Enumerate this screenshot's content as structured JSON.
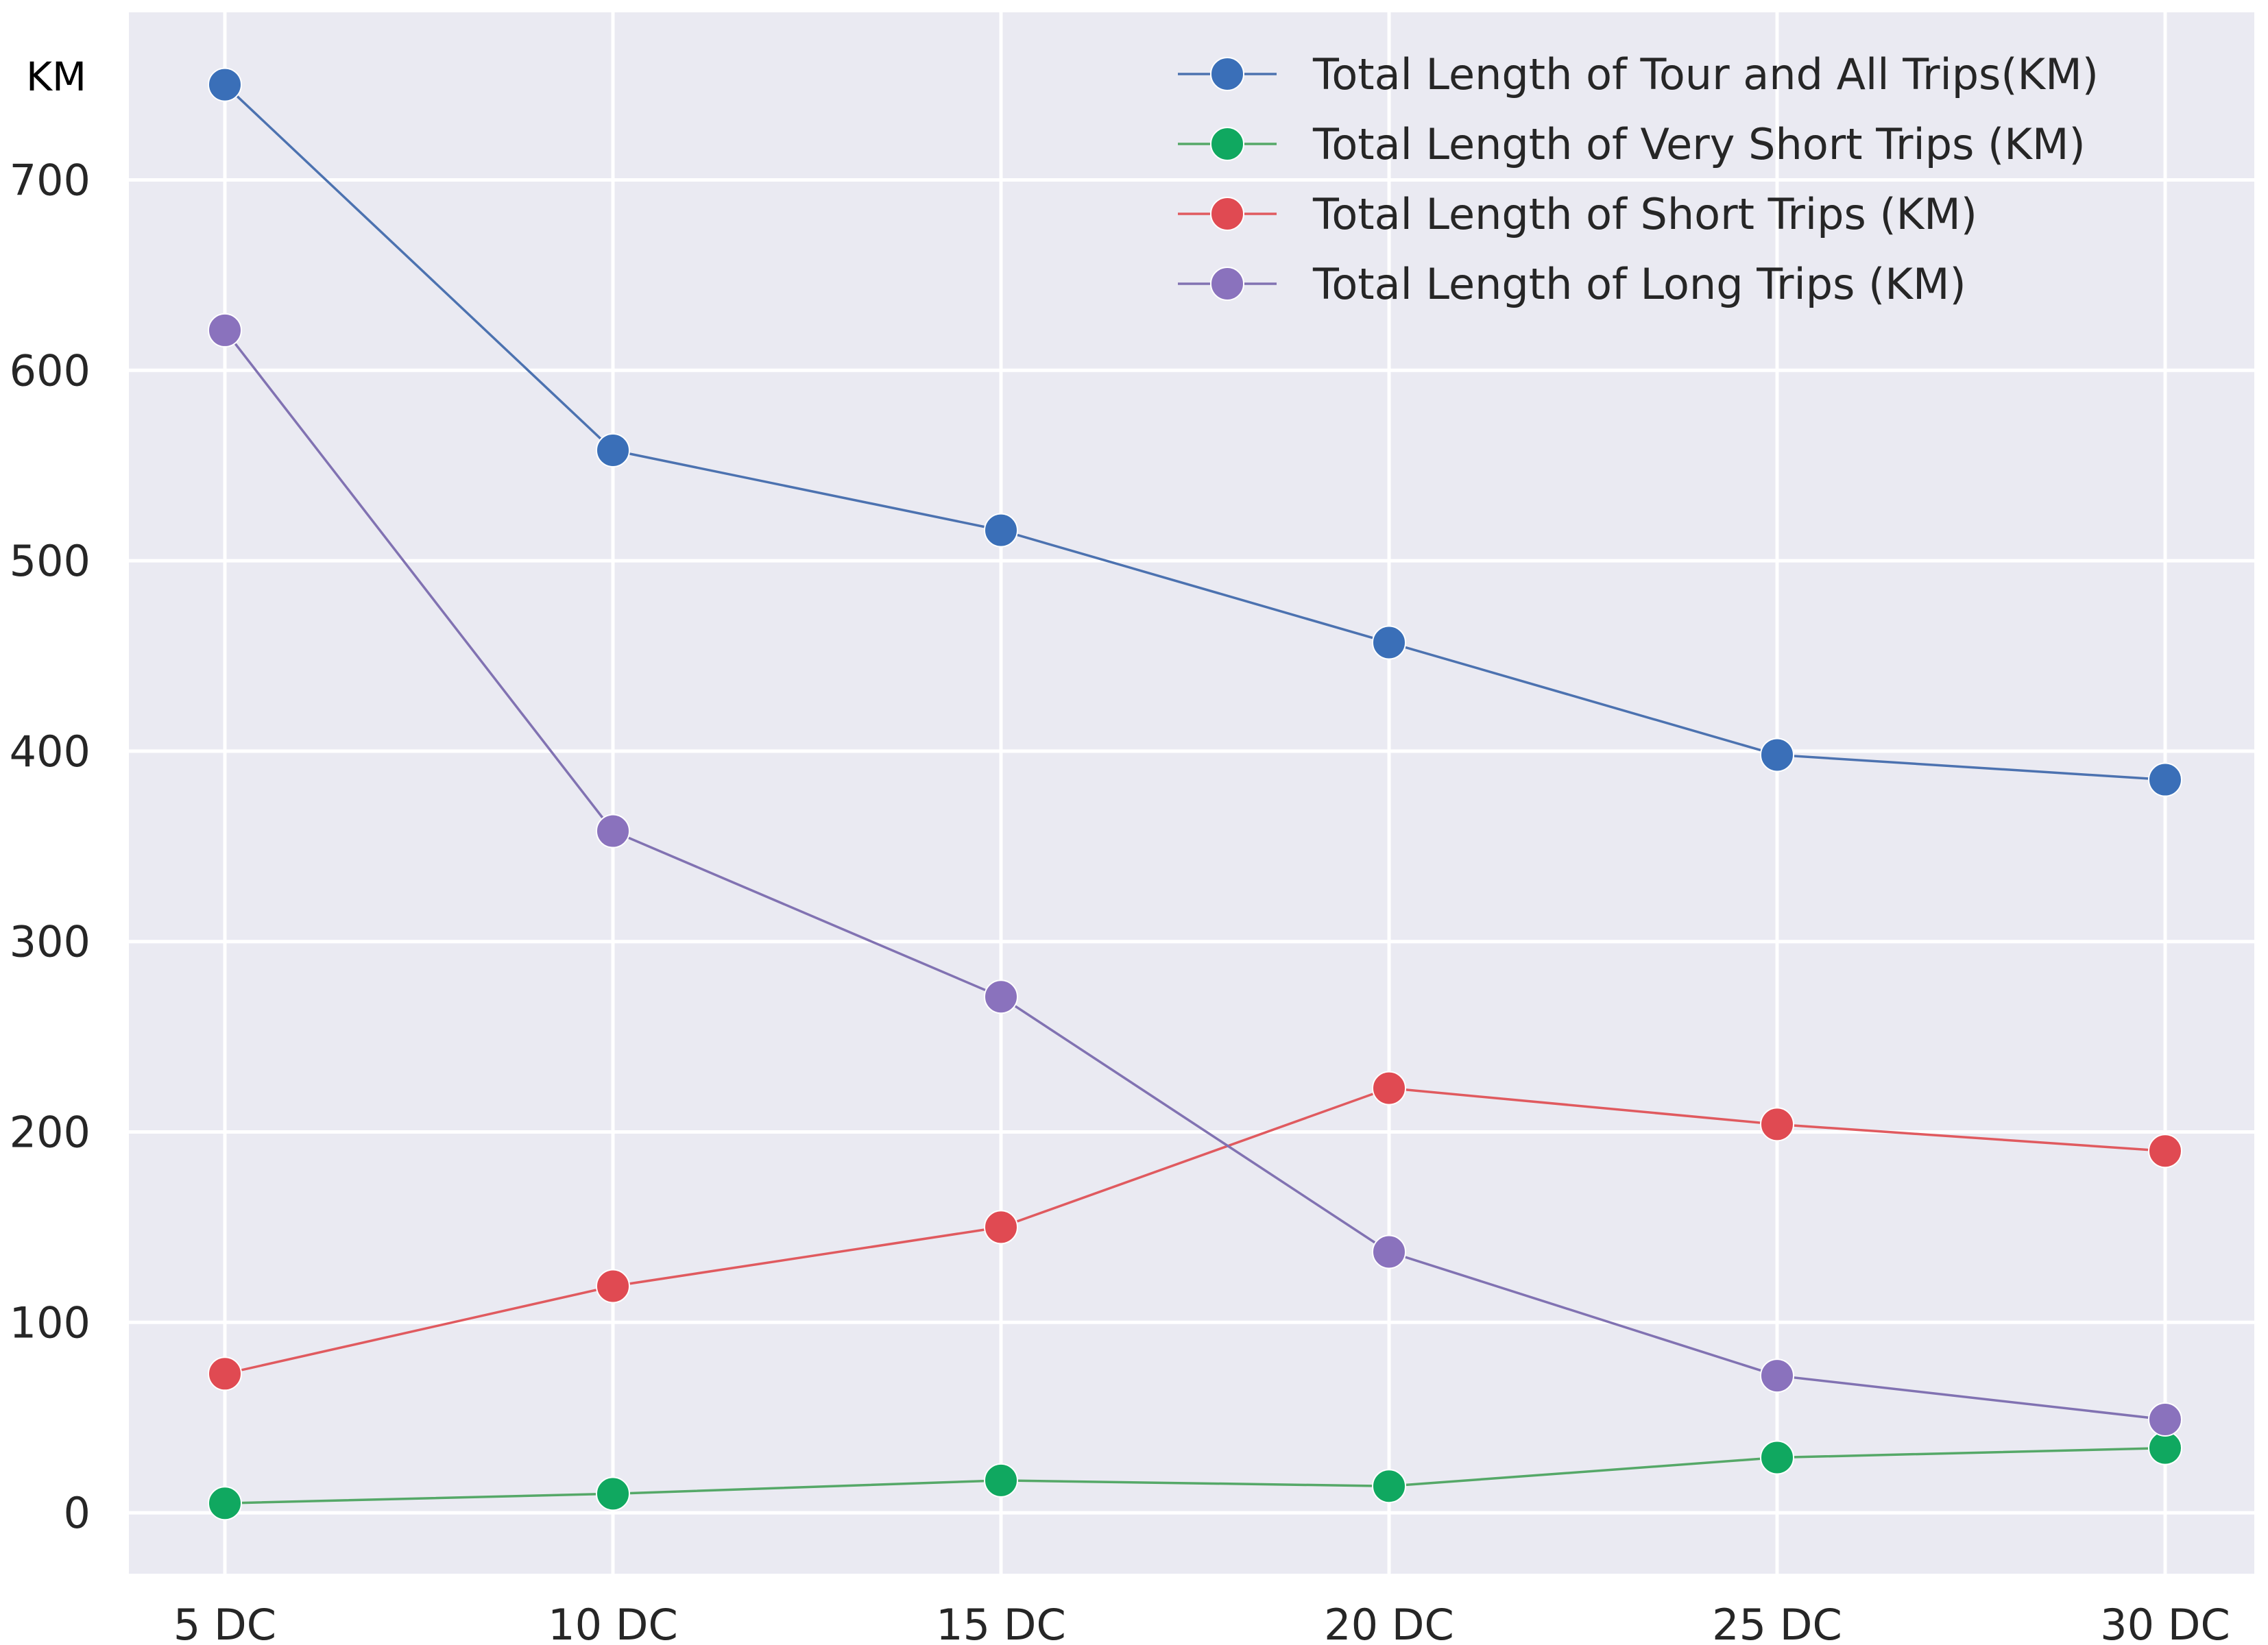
{
  "chart_data": {
    "type": "line",
    "title": "",
    "xlabel": "",
    "ylabel": "KM",
    "categories": [
      "5 DC",
      "10 DC",
      "15 DC",
      "20 DC",
      "25 DC",
      "30 DC"
    ],
    "ylim": [
      -32,
      788
    ],
    "yticks": [
      "0",
      "100",
      "200",
      "300",
      "400",
      "500",
      "600",
      "700"
    ],
    "grid": true,
    "legend_position": "top-right",
    "background_color": "#eaeaf2",
    "series": [
      {
        "name": "Total Length of Tour and All Trips(KM)",
        "color": "#4c72b0",
        "marker_color": "#3a6fb8",
        "values": [
          750,
          558,
          516,
          457,
          398,
          385
        ]
      },
      {
        "name": "Total Length of Very Short Trips (KM)",
        "color": "#55a868",
        "marker_color": "#10a860",
        "values": [
          5,
          10,
          17,
          14,
          29,
          34
        ]
      },
      {
        "name": "Total Length of Short Trips (KM)",
        "color": "#e05a5f",
        "marker_color": "#e04a52",
        "values": [
          73,
          119,
          150,
          223,
          204,
          190
        ]
      },
      {
        "name": "Total Length of Long Trips (KM)",
        "color": "#8172b2",
        "marker_color": "#8a72bd",
        "values": [
          621,
          358,
          271,
          137,
          72,
          49
        ]
      }
    ]
  }
}
